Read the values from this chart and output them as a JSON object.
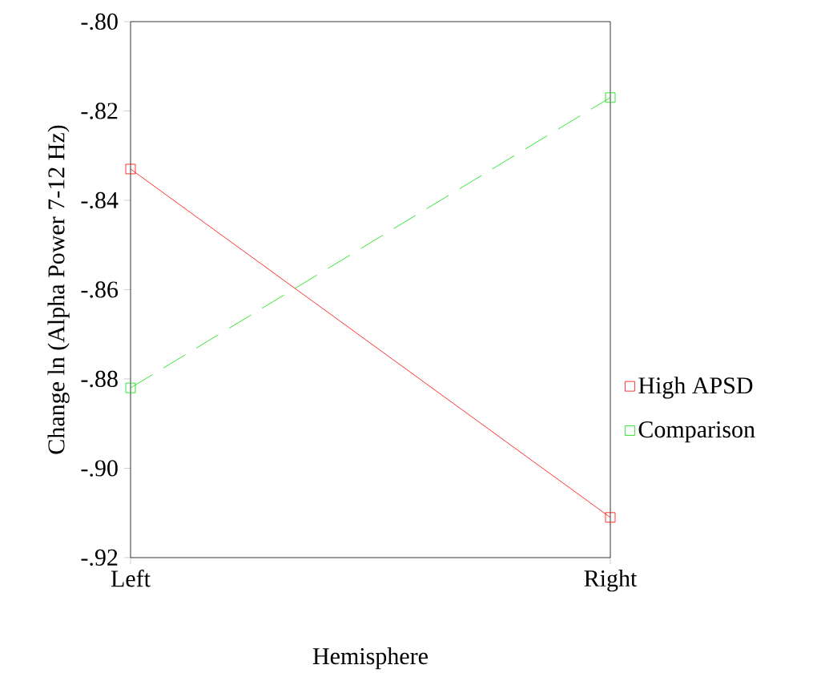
{
  "chart_data": {
    "type": "line",
    "xlabel": "Hemisphere",
    "ylabel": "Change ln (Alpha Power 7-12 Hz)",
    "categories": [
      "Left",
      "Right"
    ],
    "series": [
      {
        "name": "High APSD",
        "color": "#ff0000",
        "values": [
          -0.833,
          -0.911
        ],
        "line_style": "solid"
      },
      {
        "name": "Comparison",
        "color": "#00e000",
        "values": [
          -0.882,
          -0.817
        ],
        "line_style": "dashed"
      }
    ],
    "ylim": [
      -0.92,
      -0.8
    ],
    "yticks": [
      {
        "value": -0.92,
        "label": "-.92"
      },
      {
        "value": -0.9,
        "label": "-.90"
      },
      {
        "value": -0.88,
        "label": "-.88"
      },
      {
        "value": -0.86,
        "label": "-.86"
      },
      {
        "value": -0.84,
        "label": "-.84"
      },
      {
        "value": -0.82,
        "label": "-.82"
      },
      {
        "value": -0.8,
        "label": "-.80"
      }
    ],
    "marker": "square",
    "grid": false,
    "legend": "right"
  }
}
